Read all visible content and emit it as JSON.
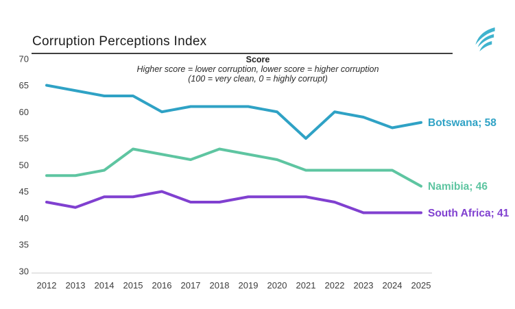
{
  "header": {
    "title": "Corruption Perceptions Index"
  },
  "logo": {
    "icon": "teal-leaf-swoosh",
    "color": "#3FB3CE"
  },
  "subtitle": {
    "heading": "Score",
    "line1": "Higher score = lower corruption, lower score = higher corruption",
    "line2": "(100 = very clean, 0 = highly corrupt)"
  },
  "chart_data": {
    "type": "line",
    "title": "Corruption Perceptions Index",
    "xlabel": "",
    "ylabel": "Score",
    "x": [
      2012,
      2013,
      2014,
      2015,
      2016,
      2017,
      2018,
      2019,
      2020,
      2021,
      2022,
      2023,
      2024,
      2025
    ],
    "series": [
      {
        "name": "Botswana",
        "end_label": "Botswana; 58",
        "color": "#2FA2C5",
        "values": [
          65,
          64,
          63,
          63,
          60,
          61,
          61,
          61,
          60,
          55,
          60,
          59,
          57,
          58
        ]
      },
      {
        "name": "Namibia",
        "end_label": "Namibia; 46",
        "color": "#5EC5A1",
        "values": [
          48,
          48,
          49,
          53,
          52,
          51,
          53,
          52,
          51,
          49,
          49,
          49,
          49,
          46
        ]
      },
      {
        "name": "South Africa",
        "end_label": "South Africa; 41",
        "color": "#8040D0",
        "values": [
          43,
          42,
          44,
          44,
          45,
          43,
          43,
          44,
          44,
          44,
          43,
          41,
          41,
          41
        ]
      }
    ],
    "ylim": [
      30,
      70
    ],
    "yticks": [
      70,
      65,
      60,
      55,
      50,
      45,
      40,
      35,
      30
    ],
    "grid": false,
    "legend_position": "end-of-line-labels"
  }
}
